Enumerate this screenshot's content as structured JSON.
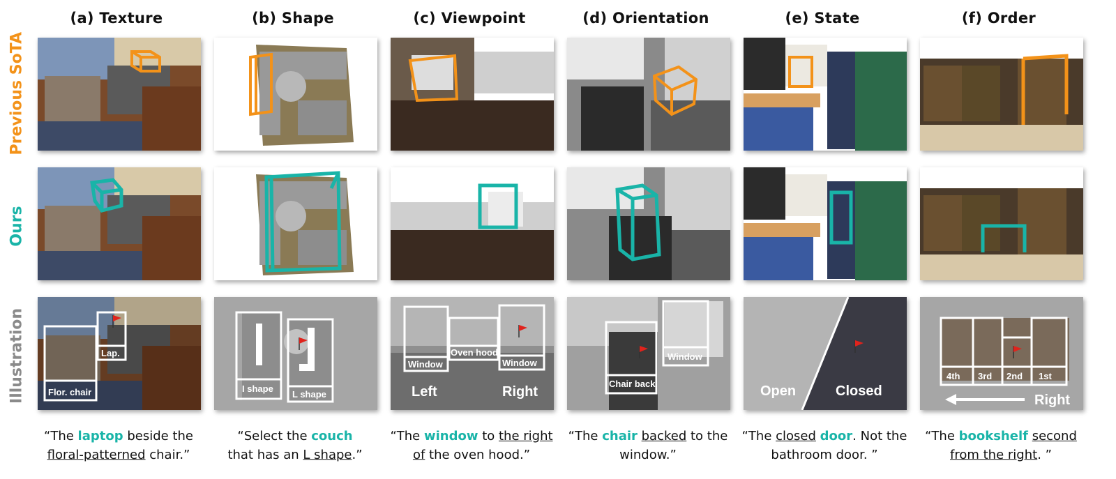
{
  "columns": [
    {
      "title": "(a) Texture"
    },
    {
      "title": "(b) Shape"
    },
    {
      "title": "(c) Viewpoint"
    },
    {
      "title": "(d) Orientation"
    },
    {
      "title": "(e) State"
    },
    {
      "title": "(f) Order"
    }
  ],
  "rows": [
    {
      "label": "Previous SoTA",
      "color": "#f39219"
    },
    {
      "label": "Ours",
      "color": "#19b4a8"
    },
    {
      "label": "Illustration",
      "color": "#8a8a8a"
    }
  ],
  "illustration": {
    "texture": {
      "box1": "Flor. chair",
      "box2": "Lap."
    },
    "shape": {
      "box1": "I shape",
      "box2": "L shape"
    },
    "viewpoint": {
      "box1": "Window",
      "box2": "Oven hood",
      "box3": "Window",
      "left": "Left",
      "right": "Right"
    },
    "orientation": {
      "box1": "Chair back",
      "box2": "Window"
    },
    "state": {
      "open": "Open",
      "closed": "Closed"
    },
    "order": {
      "o4": "4th",
      "o3": "3rd",
      "o2": "2nd",
      "o1": "1st",
      "right": "Right"
    }
  },
  "captions": {
    "a": {
      "p1": "“The ",
      "h": "laptop",
      "p2": " beside the ",
      "u1": "floral-patterned",
      "p3": " chair.”"
    },
    "b": {
      "p1": "“Select the ",
      "h": "couch",
      "p2": " that has an ",
      "u1": "L shape",
      "p3": ".”"
    },
    "c": {
      "p1": "“The ",
      "h": "window",
      "p2": " to ",
      "u1": "the right of",
      "p3": " the oven hood.”"
    },
    "d": {
      "p1": "“The ",
      "h": "chair",
      "p2": " ",
      "u1": "backed",
      "p3": " to the window.”"
    },
    "e": {
      "p1": "“The ",
      "u1": "closed",
      "p2": " ",
      "h": "door",
      "p3": ". Not the bathroom door. ”"
    },
    "f": {
      "p1": "“The ",
      "h": "bookshelf",
      "p2": " ",
      "u1": "second from the right",
      "p3": ". ”"
    }
  },
  "colors": {
    "orange": "#f39219",
    "teal": "#19b4a8",
    "flag": "#e0231c"
  },
  "icons": [
    "flag-icon",
    "arrow-left-icon"
  ]
}
